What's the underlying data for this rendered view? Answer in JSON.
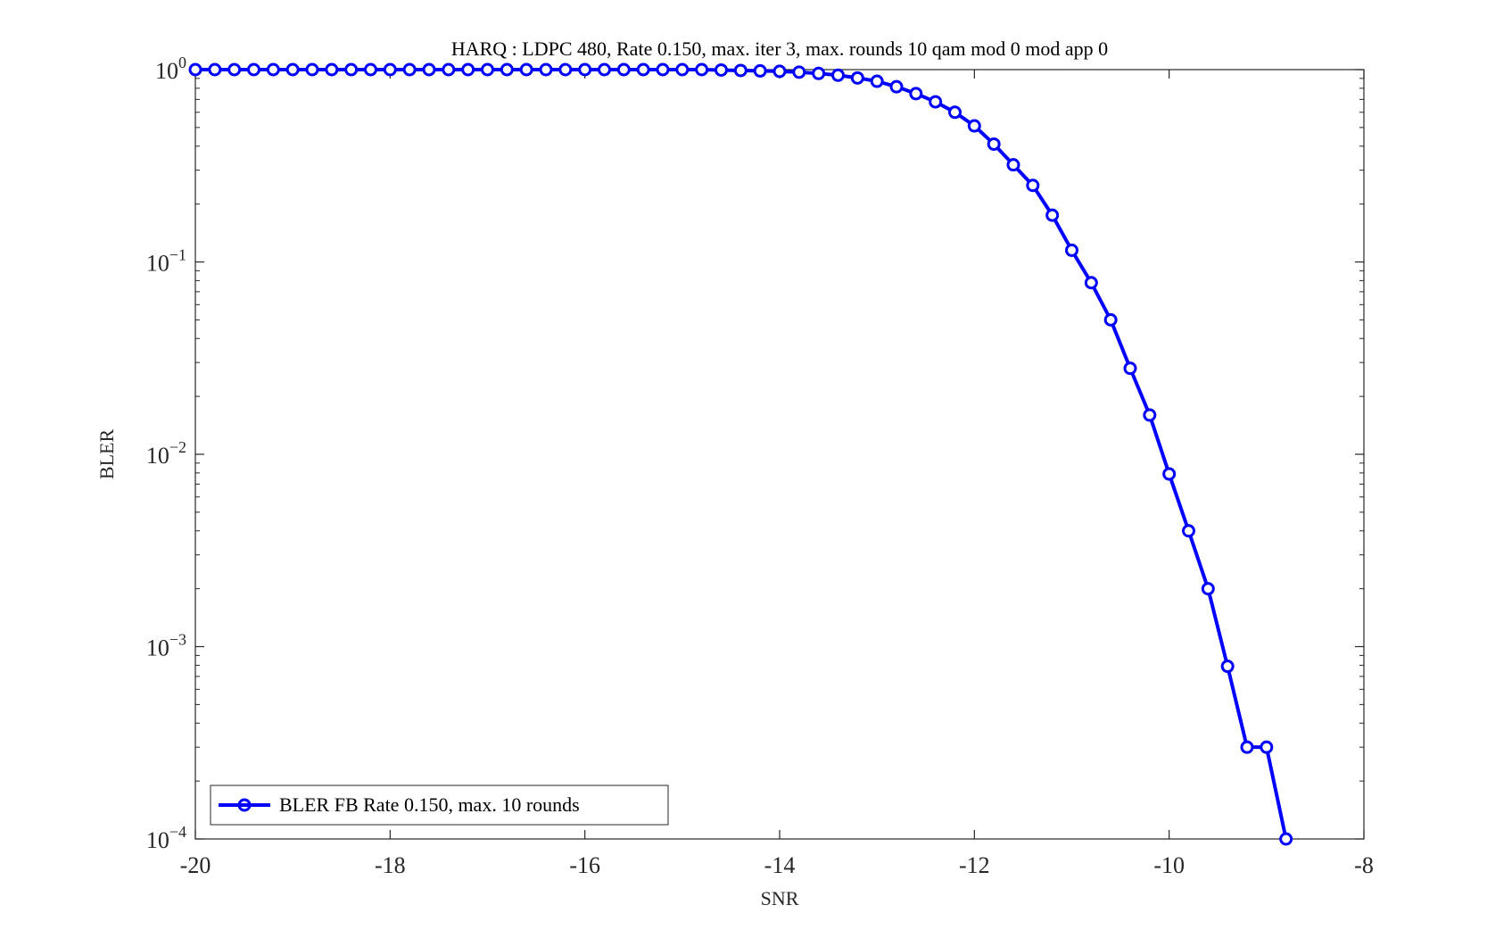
{
  "chart_data": {
    "type": "line",
    "title": "HARQ : LDPC 480, Rate 0.150, max. iter 3, max. rounds 10 qam mod 0 mod app 0",
    "xlabel": "SNR",
    "ylabel": "BLER",
    "xlim": [
      -20,
      -8
    ],
    "ylim": [
      0.0001,
      1
    ],
    "yscale": "log",
    "x_ticks": [
      -20,
      -18,
      -16,
      -14,
      -12,
      -10,
      -8
    ],
    "x_tick_labels": [
      "-20",
      "-18",
      "-16",
      "-14",
      "-12",
      "-10",
      "-8"
    ],
    "y_ticks": [
      0.0001,
      0.001,
      0.01,
      0.1,
      1
    ],
    "y_tick_base": "10",
    "y_tick_exponents": [
      "−4",
      "−3",
      "−2",
      "−1",
      "0"
    ],
    "grid": false,
    "legend_position": "bottom-left",
    "series": [
      {
        "name": "BLER FB Rate 0.150, max. 10 rounds",
        "color": "#0000ff",
        "marker": "circle",
        "x": [
          -20.0,
          -19.8,
          -19.6,
          -19.4,
          -19.2,
          -19.0,
          -18.8,
          -18.6,
          -18.4,
          -18.2,
          -18.0,
          -17.8,
          -17.6,
          -17.4,
          -17.2,
          -17.0,
          -16.8,
          -16.6,
          -16.4,
          -16.2,
          -16.0,
          -15.8,
          -15.6,
          -15.4,
          -15.2,
          -15.0,
          -14.8,
          -14.6,
          -14.4,
          -14.2,
          -14.0,
          -13.8,
          -13.6,
          -13.4,
          -13.2,
          -13.0,
          -12.8,
          -12.6,
          -12.4,
          -12.2,
          -12.0,
          -11.8,
          -11.6,
          -11.4,
          -11.2,
          -11.0,
          -10.8,
          -10.6,
          -10.4,
          -10.2,
          -10.0,
          -9.8,
          -9.6,
          -9.4,
          -9.2,
          -9.0,
          -8.8
        ],
        "y": [
          1.0,
          1.0,
          1.0,
          1.0,
          1.0,
          1.0,
          1.0,
          1.0,
          1.0,
          1.0,
          1.0,
          1.0,
          1.0,
          1.0,
          1.0,
          1.0,
          1.0,
          1.0,
          1.0,
          1.0,
          1.0,
          1.0,
          1.0,
          1.0,
          1.0,
          1.0,
          1.0,
          0.995,
          0.99,
          0.985,
          0.98,
          0.97,
          0.955,
          0.935,
          0.905,
          0.87,
          0.815,
          0.75,
          0.68,
          0.6,
          0.51,
          0.41,
          0.32,
          0.25,
          0.175,
          0.115,
          0.078,
          0.05,
          0.028,
          0.016,
          0.0079,
          0.004,
          0.002,
          0.00079,
          0.0003,
          0.0003,
          0.0001
        ]
      }
    ]
  }
}
